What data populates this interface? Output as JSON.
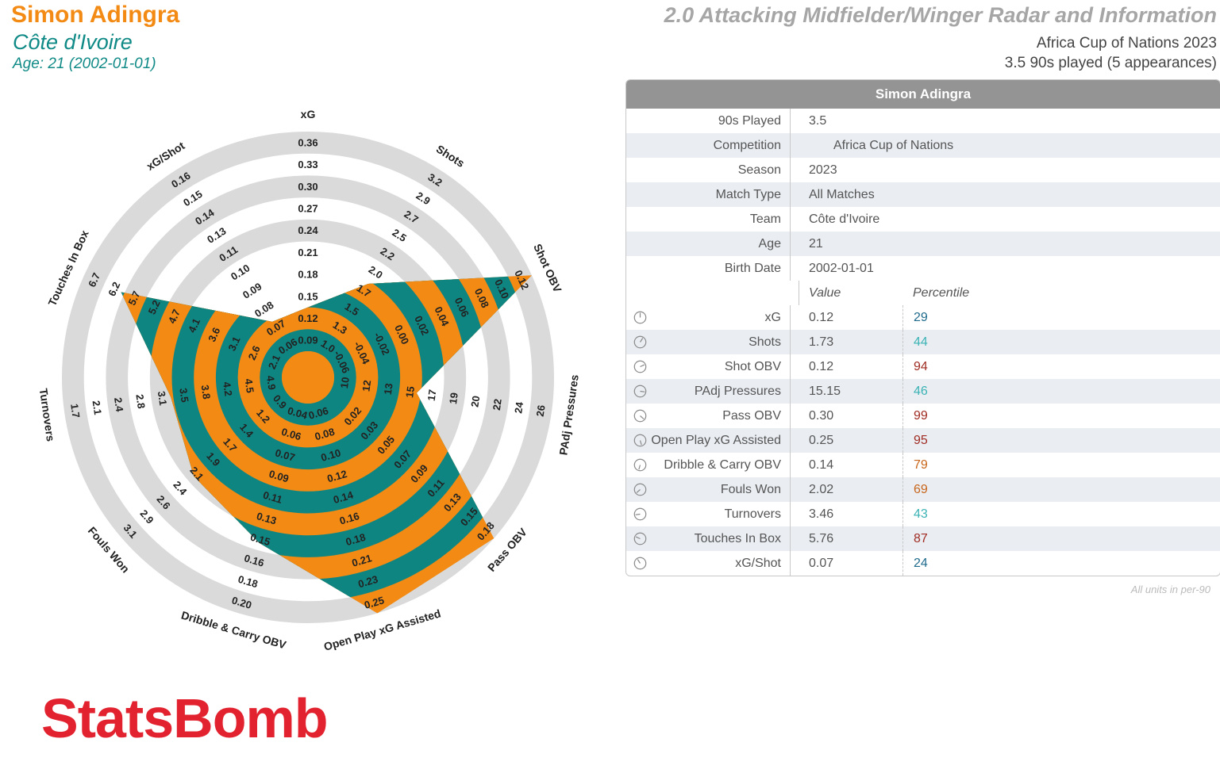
{
  "header": {
    "player_name": "Simon Adingra",
    "country": "Côte d'Ivoire",
    "age_line": "Age: 21 (2002-01-01)",
    "title": "2.0 Attacking Midfielder/Winger Radar and Information",
    "competition_line": "Africa Cup of Nations 2023",
    "played_line": "3.5 90s played (5 appearances)"
  },
  "colors": {
    "orange": "#f28a14",
    "teal": "#0f8582",
    "ring": "#dadada",
    "brand_red": "#e2232f",
    "pct_blue": "#1f6b8c",
    "pct_cyan": "#3bb3b5",
    "pct_red": "#a02c23",
    "pct_orange": "#c8651a"
  },
  "info": {
    "header": "Simon Adingra",
    "rows": [
      {
        "label": "90s Played",
        "value": "3.5"
      },
      {
        "label": "Competition",
        "value": "Africa Cup of Nations"
      },
      {
        "label": "Season",
        "value": "2023"
      },
      {
        "label": "Match Type",
        "value": "All Matches"
      },
      {
        "label": "Team",
        "value": "Côte d'Ivoire"
      },
      {
        "label": "Age",
        "value": "21"
      },
      {
        "label": "Birth Date",
        "value": "2002-01-01"
      }
    ],
    "value_header": "Value",
    "percentile_header": "Percentile",
    "metrics": [
      {
        "label": "xG",
        "value": "0.12",
        "percentile": "29",
        "color": "#1f6b8c"
      },
      {
        "label": "Shots",
        "value": "1.73",
        "percentile": "44",
        "color": "#3bb3b5"
      },
      {
        "label": "Shot OBV",
        "value": "0.12",
        "percentile": "94",
        "color": "#a02c23"
      },
      {
        "label": "PAdj Pressures",
        "value": "15.15",
        "percentile": "46",
        "color": "#3bb3b5"
      },
      {
        "label": "Pass OBV",
        "value": "0.30",
        "percentile": "99",
        "color": "#a02c23"
      },
      {
        "label": "Open Play xG Assisted",
        "value": "0.25",
        "percentile": "95",
        "color": "#a02c23"
      },
      {
        "label": "Dribble & Carry OBV",
        "value": "0.14",
        "percentile": "79",
        "color": "#c8651a"
      },
      {
        "label": "Fouls Won",
        "value": "2.02",
        "percentile": "69",
        "color": "#c8651a"
      },
      {
        "label": "Turnovers",
        "value": "3.46",
        "percentile": "43",
        "color": "#3bb3b5"
      },
      {
        "label": "Touches In Box",
        "value": "5.76",
        "percentile": "87",
        "color": "#a02c23"
      },
      {
        "label": "xG/Shot",
        "value": "0.07",
        "percentile": "24",
        "color": "#1f6b8c"
      }
    ],
    "footnote": "All units in per-90"
  },
  "chart_data": {
    "type": "radar",
    "axes": [
      {
        "name": "xG",
        "ticks": [
          "0.09",
          "0.12",
          "0.15",
          "0.18",
          "0.21",
          "0.24",
          "0.27",
          "0.30",
          "0.33",
          "0.36"
        ],
        "range": [
          0.06,
          0.36
        ],
        "value": 0.12
      },
      {
        "name": "Shots",
        "ticks": [
          "1.0",
          "1.3",
          "1.5",
          "1.7",
          "2.0",
          "2.2",
          "2.5",
          "2.7",
          "2.9",
          "3.2"
        ],
        "range": [
          0.8,
          3.2
        ],
        "value": 1.73
      },
      {
        "name": "Shot OBV",
        "ticks": [
          "-0.06",
          "-0.04",
          "-0.02",
          "0.00",
          "0.02",
          "0.04",
          "0.06",
          "0.08",
          "0.10",
          "0.12"
        ],
        "range": [
          -0.08,
          0.12
        ],
        "value": 0.12
      },
      {
        "name": "PAdj Pressures",
        "ticks": [
          "10",
          "12",
          "13",
          "15",
          "17",
          "19",
          "20",
          "22",
          "24",
          "26"
        ],
        "range": [
          8.5,
          26
        ],
        "value": 15.15
      },
      {
        "name": "Pass OBV",
        "ticks": [
          "0.02",
          "0.03",
          "0.05",
          "0.07",
          "0.09",
          "0.11",
          "0.13",
          "0.15",
          "0.18"
        ],
        "range": [
          0.0,
          0.18
        ],
        "value": 0.3
      },
      {
        "name": "Open Play xG Assisted",
        "ticks": [
          "0.06",
          "0.08",
          "0.10",
          "0.12",
          "0.14",
          "0.16",
          "0.18",
          "0.21",
          "0.23",
          "0.25"
        ],
        "range": [
          0.04,
          0.25
        ],
        "value": 0.25
      },
      {
        "name": "Dribble & Carry OBV",
        "ticks": [
          "0.04",
          "0.06",
          "0.07",
          "0.09",
          "0.11",
          "0.13",
          "0.15",
          "0.16",
          "0.18",
          "0.20"
        ],
        "range": [
          0.02,
          0.2
        ],
        "value": 0.14
      },
      {
        "name": "Fouls Won",
        "ticks": [
          "0.9",
          "1.2",
          "1.4",
          "1.7",
          "1.9",
          "2.1",
          "2.4",
          "2.6",
          "2.9",
          "3.1"
        ],
        "range": [
          0.6,
          3.1
        ],
        "value": 2.02
      },
      {
        "name": "Turnovers",
        "ticks": [
          "4.9",
          "4.5",
          "4.2",
          "3.8",
          "3.5",
          "3.1",
          "2.8",
          "2.4",
          "2.1",
          "1.7"
        ],
        "range": [
          5.3,
          1.7
        ],
        "value": 3.46
      },
      {
        "name": "Touches In Box",
        "ticks": [
          "2.1",
          "2.6",
          "3.1",
          "3.6",
          "4.1",
          "4.7",
          "5.2",
          "5.7",
          "6.2",
          "6.7"
        ],
        "range": [
          1.6,
          6.7
        ],
        "value": 5.76
      },
      {
        "name": "xG/Shot",
        "ticks": [
          "0.06",
          "0.07",
          "0.08",
          "0.09",
          "0.10",
          "0.11",
          "0.13",
          "0.14",
          "0.15",
          "0.16"
        ],
        "range": [
          0.05,
          0.16
        ],
        "value": 0.07
      }
    ]
  },
  "brand": "StatsBomb"
}
